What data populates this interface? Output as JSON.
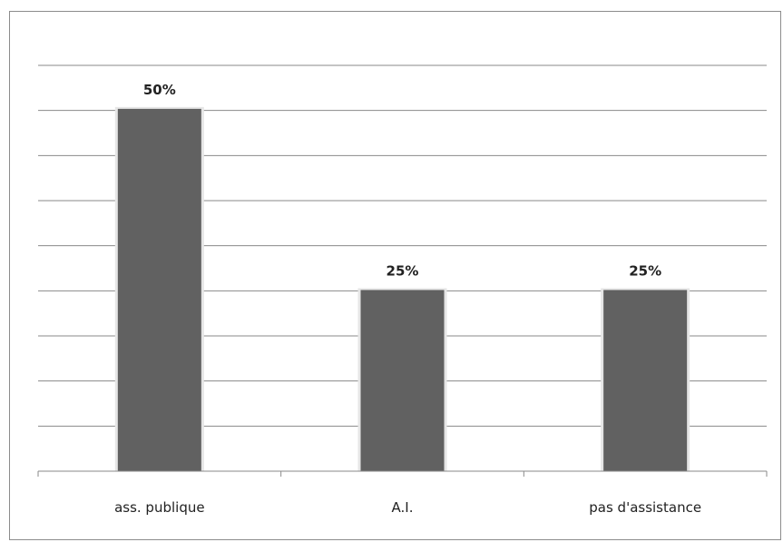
{
  "chart_data": {
    "type": "bar",
    "categories": [
      "ass. publique",
      "A.I.",
      "pas d'assistance"
    ],
    "values": [
      50,
      25,
      25
    ],
    "data_labels": [
      "50%",
      "25%",
      "25%"
    ],
    "ylim": [
      0,
      56
    ],
    "grid": true,
    "legend": "none",
    "colors": {
      "bar": "#616161",
      "grid": "#8a8a8a"
    }
  }
}
